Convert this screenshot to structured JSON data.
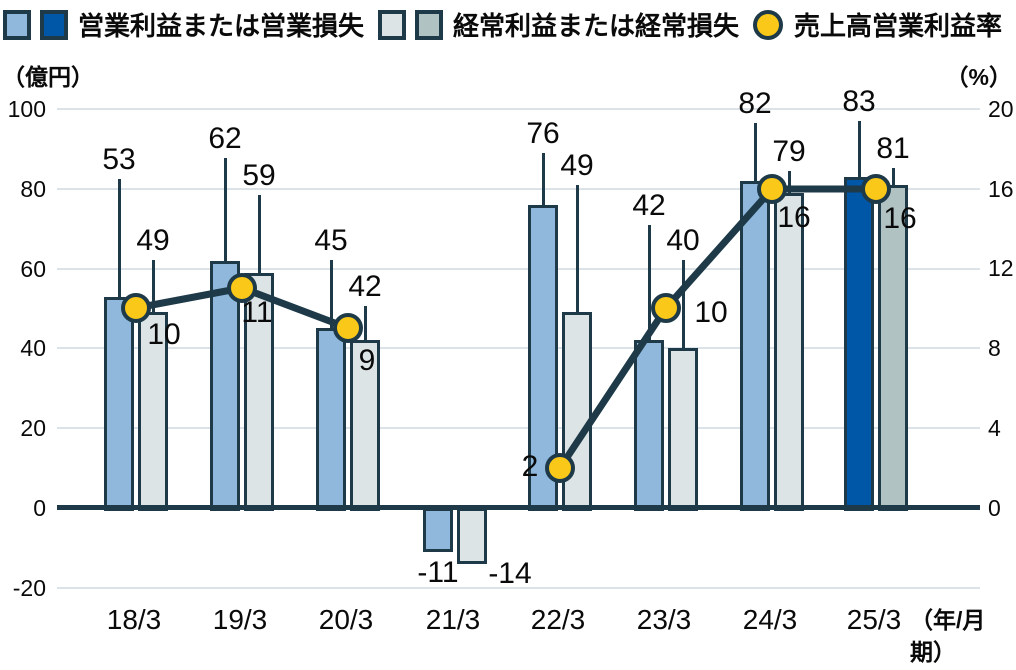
{
  "legend": {
    "items": [
      {
        "label": "営業利益または営業損失",
        "type": "bars",
        "colors": [
          "#8fb8dc",
          "#0057a8"
        ]
      },
      {
        "label": "経常利益または経常損失",
        "type": "bars",
        "colors": [
          "#dde4e6",
          "#b1c2c3"
        ]
      },
      {
        "label": "売上高営業利益率",
        "type": "dot",
        "colors": [
          "#f9c819"
        ]
      }
    ]
  },
  "chart_data": {
    "type": "bar+line",
    "categories": [
      "18/3",
      "19/3",
      "20/3",
      "21/3",
      "22/3",
      "23/3",
      "24/3",
      "25/3"
    ],
    "series": [
      {
        "name": "営業利益または営業損失",
        "type": "bar",
        "axis": "left",
        "values": [
          53,
          62,
          45,
          -11,
          76,
          42,
          82,
          83
        ]
      },
      {
        "name": "経常利益または経常損失",
        "type": "bar",
        "axis": "left",
        "values": [
          49,
          59,
          42,
          -14,
          49,
          40,
          79,
          81
        ]
      },
      {
        "name": "売上高営業利益率",
        "type": "line",
        "axis": "right",
        "values": [
          10,
          11,
          9,
          null,
          2,
          10,
          16,
          16
        ]
      }
    ],
    "left_axis": {
      "unit": "（億円）",
      "ticks": [
        100,
        80,
        60,
        40,
        20,
        0,
        -20
      ],
      "range": [
        -20,
        100
      ]
    },
    "right_axis": {
      "unit": "（%）",
      "ticks": [
        20,
        16,
        12,
        8,
        4,
        0
      ],
      "range": [
        -4,
        20
      ]
    },
    "x_suffix": "（年/月期）",
    "highlight_index": 7,
    "grid_on": true,
    "legend_position": "top",
    "colors": {
      "bar1": "#8fb8dc",
      "bar1_highlight": "#0057a8",
      "bar2": "#dde4e6",
      "bar2_highlight": "#b1c2c3",
      "line": "#1e3a48",
      "dot_fill": "#f9c819",
      "grid": "#dce3e8",
      "zero_axis": "#1e3a48"
    }
  }
}
